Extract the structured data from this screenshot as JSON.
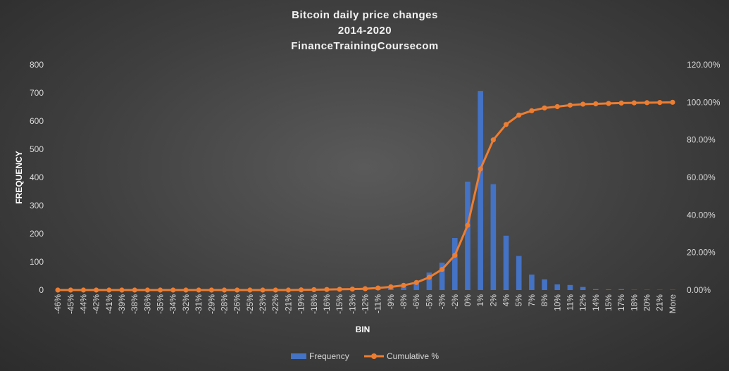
{
  "chart_data": {
    "type": "bar",
    "title_lines": [
      "Bitcoin daily price changes",
      "2014-2020",
      "FinanceTrainingCoursecom"
    ],
    "xlabel": "BIN",
    "ylabel": "FREQUENCY",
    "ylim": [
      0,
      800
    ],
    "y_ticks": [
      "0",
      "100",
      "200",
      "300",
      "400",
      "500",
      "600",
      "700",
      "800"
    ],
    "y2lim": [
      0,
      1.2
    ],
    "y2_ticks": [
      "0.00%",
      "20.00%",
      "40.00%",
      "60.00%",
      "80.00%",
      "100.00%",
      "120.00%"
    ],
    "categories": [
      "-46%",
      "-45%",
      "-44%",
      "-42%",
      "-41%",
      "-39%",
      "-38%",
      "-36%",
      "-35%",
      "-34%",
      "-32%",
      "-31%",
      "-29%",
      "-28%",
      "-26%",
      "-25%",
      "-23%",
      "-22%",
      "-21%",
      "-19%",
      "-18%",
      "-16%",
      "-15%",
      "-13%",
      "-12%",
      "-11%",
      "-9%",
      "-8%",
      "-6%",
      "-5%",
      "-3%",
      "-2%",
      "0%",
      "1%",
      "2%",
      "4%",
      "5%",
      "7%",
      "8%",
      "10%",
      "11%",
      "12%",
      "14%",
      "15%",
      "17%",
      "18%",
      "20%",
      "21%",
      "More"
    ],
    "series": [
      {
        "name": "Frequency",
        "color": "#4472c4",
        "values": [
          1,
          0,
          0,
          0,
          0,
          0,
          0,
          0,
          0,
          0,
          0,
          0,
          0,
          0,
          0,
          0,
          0,
          0,
          1,
          1,
          1,
          1,
          2,
          2,
          3,
          5,
          8,
          12,
          22,
          62,
          97,
          185,
          385,
          707,
          376,
          193,
          121,
          55,
          38,
          20,
          18,
          11,
          3,
          2,
          3,
          1,
          1,
          1,
          1
        ]
      },
      {
        "name": "Cumulative %",
        "color": "#ed7d31",
        "values": [
          0,
          0,
          0,
          0,
          0,
          0,
          0,
          0,
          0,
          0,
          0,
          0,
          0,
          0,
          0,
          0,
          0,
          0,
          0,
          0.001,
          0.002,
          0.003,
          0.004,
          0.005,
          0.007,
          0.011,
          0.017,
          0.025,
          0.04,
          0.068,
          0.11,
          0.185,
          0.345,
          0.645,
          0.8,
          0.882,
          0.932,
          0.955,
          0.97,
          0.977,
          0.985,
          0.99,
          0.992,
          0.994,
          0.996,
          0.997,
          0.998,
          0.999,
          1.0
        ]
      }
    ],
    "legend_position": "bottom",
    "grid": false
  }
}
